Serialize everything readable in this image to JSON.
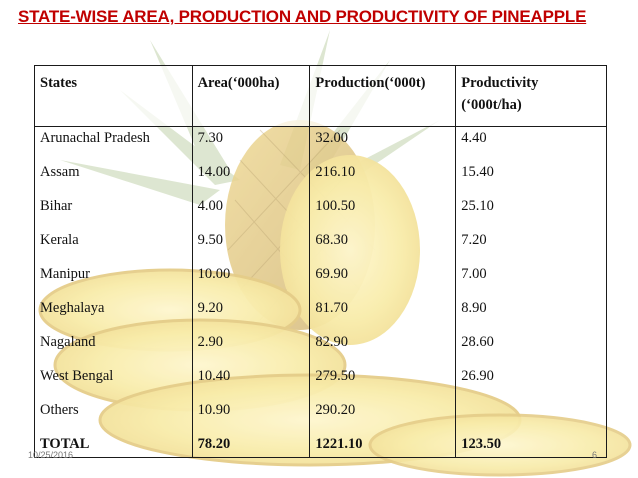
{
  "slide": {
    "title": "STATE-WISE AREA, PRODUCTION AND PRODUCTIVITY OF PINEAPPLE",
    "date": "10/25/2016",
    "page_number": "6"
  },
  "table": {
    "headers": {
      "states": "States",
      "area": "Area(‘000ha)",
      "production": "Production(‘000t)",
      "productivity_line1": "Productivity",
      "productivity_line2": "(‘000t/ha)"
    },
    "rows": [
      {
        "state": "Arunachal Pradesh",
        "area": "7.30",
        "production": "32.00",
        "productivity": "4.40"
      },
      {
        "state": "Assam",
        "area": "14.00",
        "production": "216.10",
        "productivity": "15.40"
      },
      {
        "state": "Bihar",
        "area": "4.00",
        "production": "100.50",
        "productivity": "25.10"
      },
      {
        "state": "Kerala",
        "area": "9.50",
        "production": "68.30",
        "productivity": "7.20"
      },
      {
        "state": "Manipur",
        "area": "10.00",
        "production": "69.90",
        "productivity": "7.00"
      },
      {
        "state": "Meghalaya",
        "area": "9.20",
        "production": "81.70",
        "productivity": "8.90"
      },
      {
        "state": "Nagaland",
        "area": "2.90",
        "production": "82.90",
        "productivity": "28.60"
      },
      {
        "state": "West Bengal",
        "area": "10.40",
        "production": "279.50",
        "productivity": "26.90"
      },
      {
        "state": "Others",
        "area": "10.90",
        "production": "290.20",
        "productivity": ""
      }
    ],
    "total": {
      "state": "TOTAL",
      "area": "78.20",
      "production": "1221.10",
      "productivity": "123.50"
    }
  },
  "colors": {
    "title": "#c00000",
    "pineapple_flesh": "#f3e27a",
    "pineapple_skin": "#c9a640",
    "leaves": "#8fae6a"
  }
}
